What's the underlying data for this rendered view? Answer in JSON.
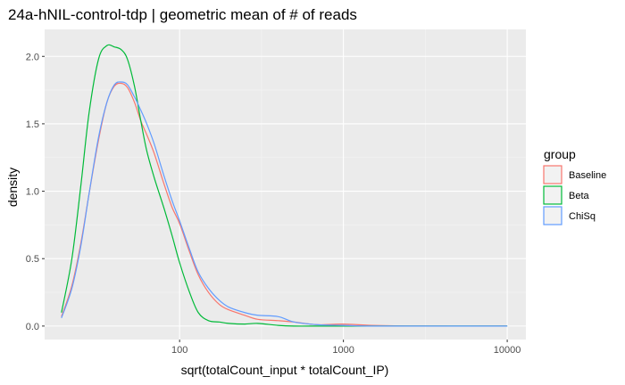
{
  "chart_data": {
    "type": "line",
    "title": "24a-hNIL-control-tdp | geometric mean of # of reads",
    "xlabel": "sqrt(totalCount_input * totalCount_IP)",
    "ylabel": "density",
    "x_scale": "log10",
    "xlim": [
      15,
      13000
    ],
    "ylim": [
      -0.1,
      2.2
    ],
    "x_ticks": [
      100,
      1000,
      10000
    ],
    "x_tick_labels": [
      "100",
      "1000",
      "10000"
    ],
    "y_ticks": [
      0.0,
      0.5,
      1.0,
      1.5,
      2.0
    ],
    "y_tick_labels": [
      "0.0",
      "0.5",
      "1.0",
      "1.5",
      "2.0"
    ],
    "grid": true,
    "legend": {
      "title": "group",
      "position": "right"
    },
    "series": [
      {
        "name": "Baseline",
        "color": "#F8766D",
        "x": [
          19,
          22,
          25,
          28,
          32,
          36,
          40,
          44,
          48,
          53,
          58,
          63,
          70,
          80,
          90,
          100,
          115,
          130,
          150,
          175,
          200,
          250,
          300,
          400,
          500,
          700,
          1000,
          1500,
          3000,
          10000
        ],
        "y": [
          0.07,
          0.3,
          0.62,
          0.98,
          1.38,
          1.66,
          1.78,
          1.8,
          1.77,
          1.66,
          1.52,
          1.42,
          1.28,
          1.06,
          0.88,
          0.76,
          0.55,
          0.38,
          0.25,
          0.16,
          0.12,
          0.08,
          0.05,
          0.04,
          0.03,
          0.01,
          0.015,
          0.005,
          0.0,
          0.0
        ]
      },
      {
        "name": "Beta",
        "color": "#00BA38",
        "x": [
          19,
          22,
          25,
          28,
          32,
          36,
          40,
          44,
          48,
          53,
          58,
          63,
          70,
          80,
          90,
          100,
          115,
          130,
          150,
          175,
          200,
          250,
          300,
          400,
          500,
          700,
          1000,
          1500,
          3000,
          10000
        ],
        "y": [
          0.1,
          0.5,
          1.05,
          1.58,
          1.98,
          2.08,
          2.07,
          2.05,
          1.98,
          1.78,
          1.52,
          1.3,
          1.1,
          0.88,
          0.67,
          0.47,
          0.25,
          0.1,
          0.04,
          0.03,
          0.02,
          0.015,
          0.02,
          0.005,
          0.0,
          0.0,
          0.0,
          0.0,
          0.0,
          0.0
        ]
      },
      {
        "name": "ChiSq",
        "color": "#619CFF",
        "x": [
          19,
          22,
          25,
          28,
          32,
          36,
          40,
          44,
          48,
          53,
          58,
          63,
          70,
          80,
          90,
          100,
          115,
          130,
          150,
          175,
          200,
          250,
          300,
          400,
          500,
          700,
          1000,
          1500,
          3000,
          10000
        ],
        "y": [
          0.06,
          0.28,
          0.6,
          0.98,
          1.4,
          1.66,
          1.79,
          1.81,
          1.79,
          1.7,
          1.6,
          1.5,
          1.35,
          1.12,
          0.93,
          0.78,
          0.57,
          0.4,
          0.28,
          0.19,
          0.14,
          0.1,
          0.08,
          0.07,
          0.03,
          0.01,
          0.005,
          0.0,
          0.0,
          0.0
        ]
      }
    ]
  }
}
